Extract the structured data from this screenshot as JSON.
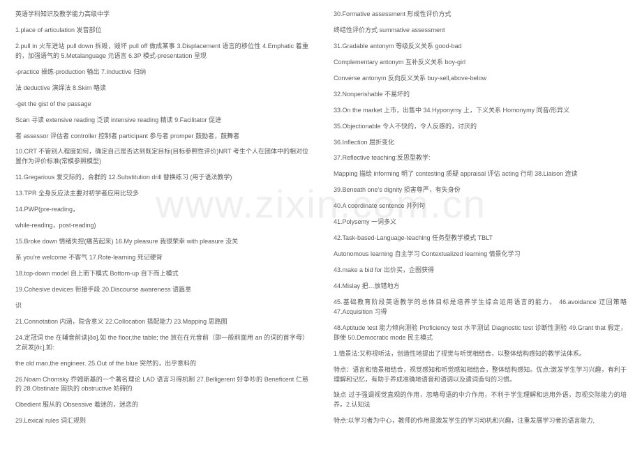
{
  "watermark": "www.zixin.com.cn",
  "left": [
    "英语学科知识及教学能力高级中学",
    "1.place of articulation 发音部位",
    "2.pull in 火车进站 pull down 拆毁，毁坏 pull off 做成某事 3.Displacement 语言的移位性 4.Emphatic 着重的，加强语气的 5.Metalanguage 元语言 6.3P 模式-presentation 呈现",
    "-practice 操练-production 输出 7.Inductive 归纳",
    "法 deductive 演绎法 8.Skim 略读",
    "-get the gist of the passage",
    "Scan 寻读 extensive reading 泛读 intensive reading 精读 9.Facilitator 促进",
    "者 assessor 评估者 controller 控制者 participant 参与者 promper 鼓励者，鼓舞者",
    "10.CRT 不管别人程度如何，确定自己是否达到既定目标(目标参照性评价)NRT 考生个人在团体中的相对位置作为评价标准(常模参照模型)",
    "11.Gregarious 爱交际的，合群的 12.Substitution drill 替换练习 (用于语法教学)",
    "13.TPR 全身反应法主要对初学者应用比较多",
    "14.PWP(pre-reading，",
    "while-reading，post-reading)",
    "15.Broke down 情绪失控(痛苦起来) 16.My pleasure 我很荣幸 with pleasure 没关",
    "系 you're welcome 不客气 17.Rote-learning 死记硬背",
    "18.top-down model 自上而下模式 Bottom-up 自下而上模式",
    "19.Cohesive devices 衔接手段 20.Discourse awareness 语篇意",
    "识",
    "21.Connotation 内涵，隐含意义 22.Collocation 搭配能力 23.Mapping 思路图",
    "24.定冠词 the 在辅音前读[ðə],如  the floor,the table; the 放在在元音前（即一般前面用 an 的词的首字母）之前发[ði:],如:",
    "the old man,the engineer. 25.Out of the blue 突然的，出乎意料的",
    "26.Noam Chomsky 乔姆斯基的一个著名理论 LAD 语言习得机制 27.Belligerent 好争吵的 Beneficent 仁慈的 28.Obstinate 固执的 obstructive 妨碍的",
    "Obedient 服从的 Obsessive 着迷的，迷恋的",
    "29.Lexical rules 词汇规则"
  ],
  "right": [
    "30.Formative assessment 形成性评价方式",
    "终结性评价方式 summative assessment",
    "31.Gradable antonym 等级反义关系 good-bad",
    "Complementary antonym 互补反义关系 boy-girl",
    "Converse antonym 反向反义关系 buy-sell,above-below",
    "32.Nonperishable 不易坏的",
    "33.On the market 上市，出售中 34.Hyponymy 上，下义关系 Homonymy 同音/形异义",
    "35.Objectionable 令人不快的，令人反感的，讨厌的",
    "36.Inflection 屈折变化",
    "37.Reflective teaching:反思型教学:",
    "Mapping 描绘 informing 明了 contesting 质疑 appraisal 评估 acting 行动 38.Liaison 连读",
    "39.Beneath one's dignity 损害尊严，有失身份",
    "40.A coordinate sentence 并列句",
    "41.Polysemy  一词多义",
    "42.Task-based-Language-teaching 任务型教学模式 TBLT",
    "Autonomous learning 自主学习 Contextualized learning 情景化学习",
    "43.make a bid for 出价买，企图获得",
    "44.Mislay 把…放错地方",
    "45.基础教育阶段英语教学的总体目标是培养学生综合运用语言的能力。 46.avoidance 迂回策略 47.Acquisition 习得",
    "48.Aptitude test 能力倾向测验 Proficiency test 水平测试 Diagnostic test 诊断性测验 49.Grant that 假定，即使 50.Democratic mode 民主模式",
    "1.情景法:又称视听法，创造性地提出了视觉与听觉相结合，以整体结构感知的教学法体系。",
    "特点：语言和情景相结合，视觉感知和听觉感知相结合，整体结构感知。优点:激发学生学习兴趣，有利于理解和记忆，有助于养成准确地语音和语调以及遣词造句的习惯。",
    "缺点 过于强调视觉直观的作用，忽略母语的中介作用，不利于学生理解和运用外语，忽视交际能力的培养。2.认知法",
    "特点:以学习者为中心，教师的作用是激发学生的学习动机和兴趣，注重发展学习者的语言能力,"
  ]
}
